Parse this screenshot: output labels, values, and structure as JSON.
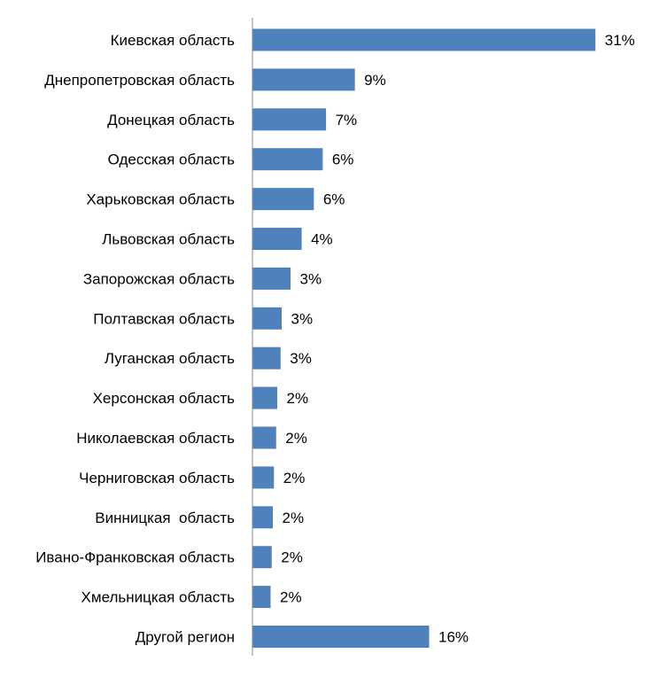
{
  "chart_data": {
    "type": "bar",
    "orientation": "horizontal",
    "categories": [
      "Киевская область",
      "Днепропетровская область",
      "Донецкая область",
      "Одесская область",
      "Харьковская область",
      "Львовская область",
      "Запорожская область",
      "Полтавская область",
      "Луганская область",
      "Херсонская область",
      "Николаевская область",
      "Черниговская область",
      "Винницкая  область",
      "Ивано-Франковская область",
      "Хмельницкая область",
      "Другой регион"
    ],
    "values": [
      31,
      9,
      7,
      6,
      6,
      4,
      3,
      3,
      3,
      2,
      2,
      2,
      2,
      2,
      2,
      16
    ],
    "display_values": [
      30.9,
      9.2,
      6.6,
      6.3,
      5.5,
      4.4,
      3.4,
      2.6,
      2.5,
      2.2,
      2.1,
      1.9,
      1.8,
      1.7,
      1.6,
      15.9
    ],
    "value_labels": [
      "31%",
      "9%",
      "7%",
      "6%",
      "6%",
      "4%",
      "3%",
      "3%",
      "3%",
      "2%",
      "2%",
      "2%",
      "2%",
      "2%",
      "2%",
      "16%"
    ],
    "xlim": [
      0,
      31
    ],
    "grid": false,
    "legend": "none",
    "bar_color": "#4f81bd",
    "title": "",
    "xlabel": "",
    "ylabel": ""
  }
}
